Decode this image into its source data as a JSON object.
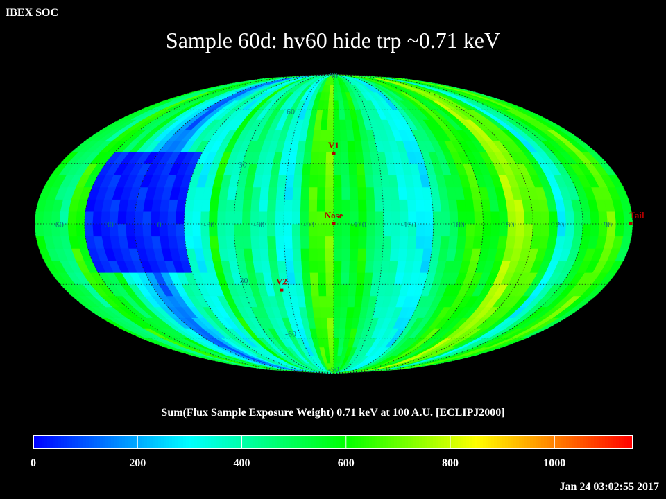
{
  "header": {
    "corner_label": "IBEX SOC",
    "title": "Sample 60d: hv60 hide trp ~0.71 keV"
  },
  "chart_data": {
    "type": "heatmap",
    "projection": "mollweide",
    "colorbar": {
      "title": "Sum(Flux Sample Exposure Weight)  0.71 keV at 100 A.U. [ECLIPJ2000]",
      "range": [
        0,
        1150
      ],
      "ticks": [
        0,
        200,
        400,
        600,
        800,
        1000
      ],
      "tick_labels": [
        "0",
        "200",
        "400",
        "600",
        "800",
        "1000"
      ],
      "stops": [
        {
          "v": 0,
          "color": "#0000ff"
        },
        {
          "v": 300,
          "color": "#00ffff"
        },
        {
          "v": 600,
          "color": "#00ff00"
        },
        {
          "v": 850,
          "color": "#ffff00"
        },
        {
          "v": 1150,
          "color": "#ff0000"
        }
      ]
    },
    "longitude_labels": [
      "60",
      "30",
      "0",
      "-30",
      "-60",
      "-90",
      "-120",
      "-150",
      "180",
      "150",
      "120",
      "90"
    ],
    "latitude_labels": [
      "90",
      "60",
      "30",
      "-30",
      "-60",
      "-90"
    ],
    "markers": [
      {
        "label": "V1",
        "lon_offset": 0,
        "lat": 35
      },
      {
        "label": "Nose",
        "lon_offset": 0,
        "lat": 0
      },
      {
        "label": "V2",
        "lon_offset": -35,
        "lat": -33
      },
      {
        "label": "Tail",
        "lon_offset": 180,
        "lat": 0
      }
    ],
    "band_values": [
      560,
      520,
      480,
      440,
      640,
      600,
      540,
      500,
      560,
      380,
      320,
      260,
      160,
      120,
      200,
      280,
      380,
      420,
      340,
      300,
      360,
      600,
      420,
      380,
      440,
      500,
      400,
      360,
      460,
      340,
      300,
      380,
      540,
      660,
      640,
      700,
      560,
      520,
      560,
      600,
      500,
      440,
      400,
      380,
      340,
      340,
      300,
      280,
      420,
      480,
      500,
      560,
      620,
      660,
      600,
      560,
      600,
      760,
      760,
      700,
      680,
      660,
      560,
      300,
      380,
      460,
      560,
      600,
      640,
      700,
      620,
      540
    ],
    "low_flux_region": {
      "lon_range": [
        -148,
        -90
      ],
      "lat_range": [
        -25,
        35
      ],
      "value": 40
    }
  },
  "footer": {
    "timestamp": "Jan 24 03:02:55 2017"
  }
}
